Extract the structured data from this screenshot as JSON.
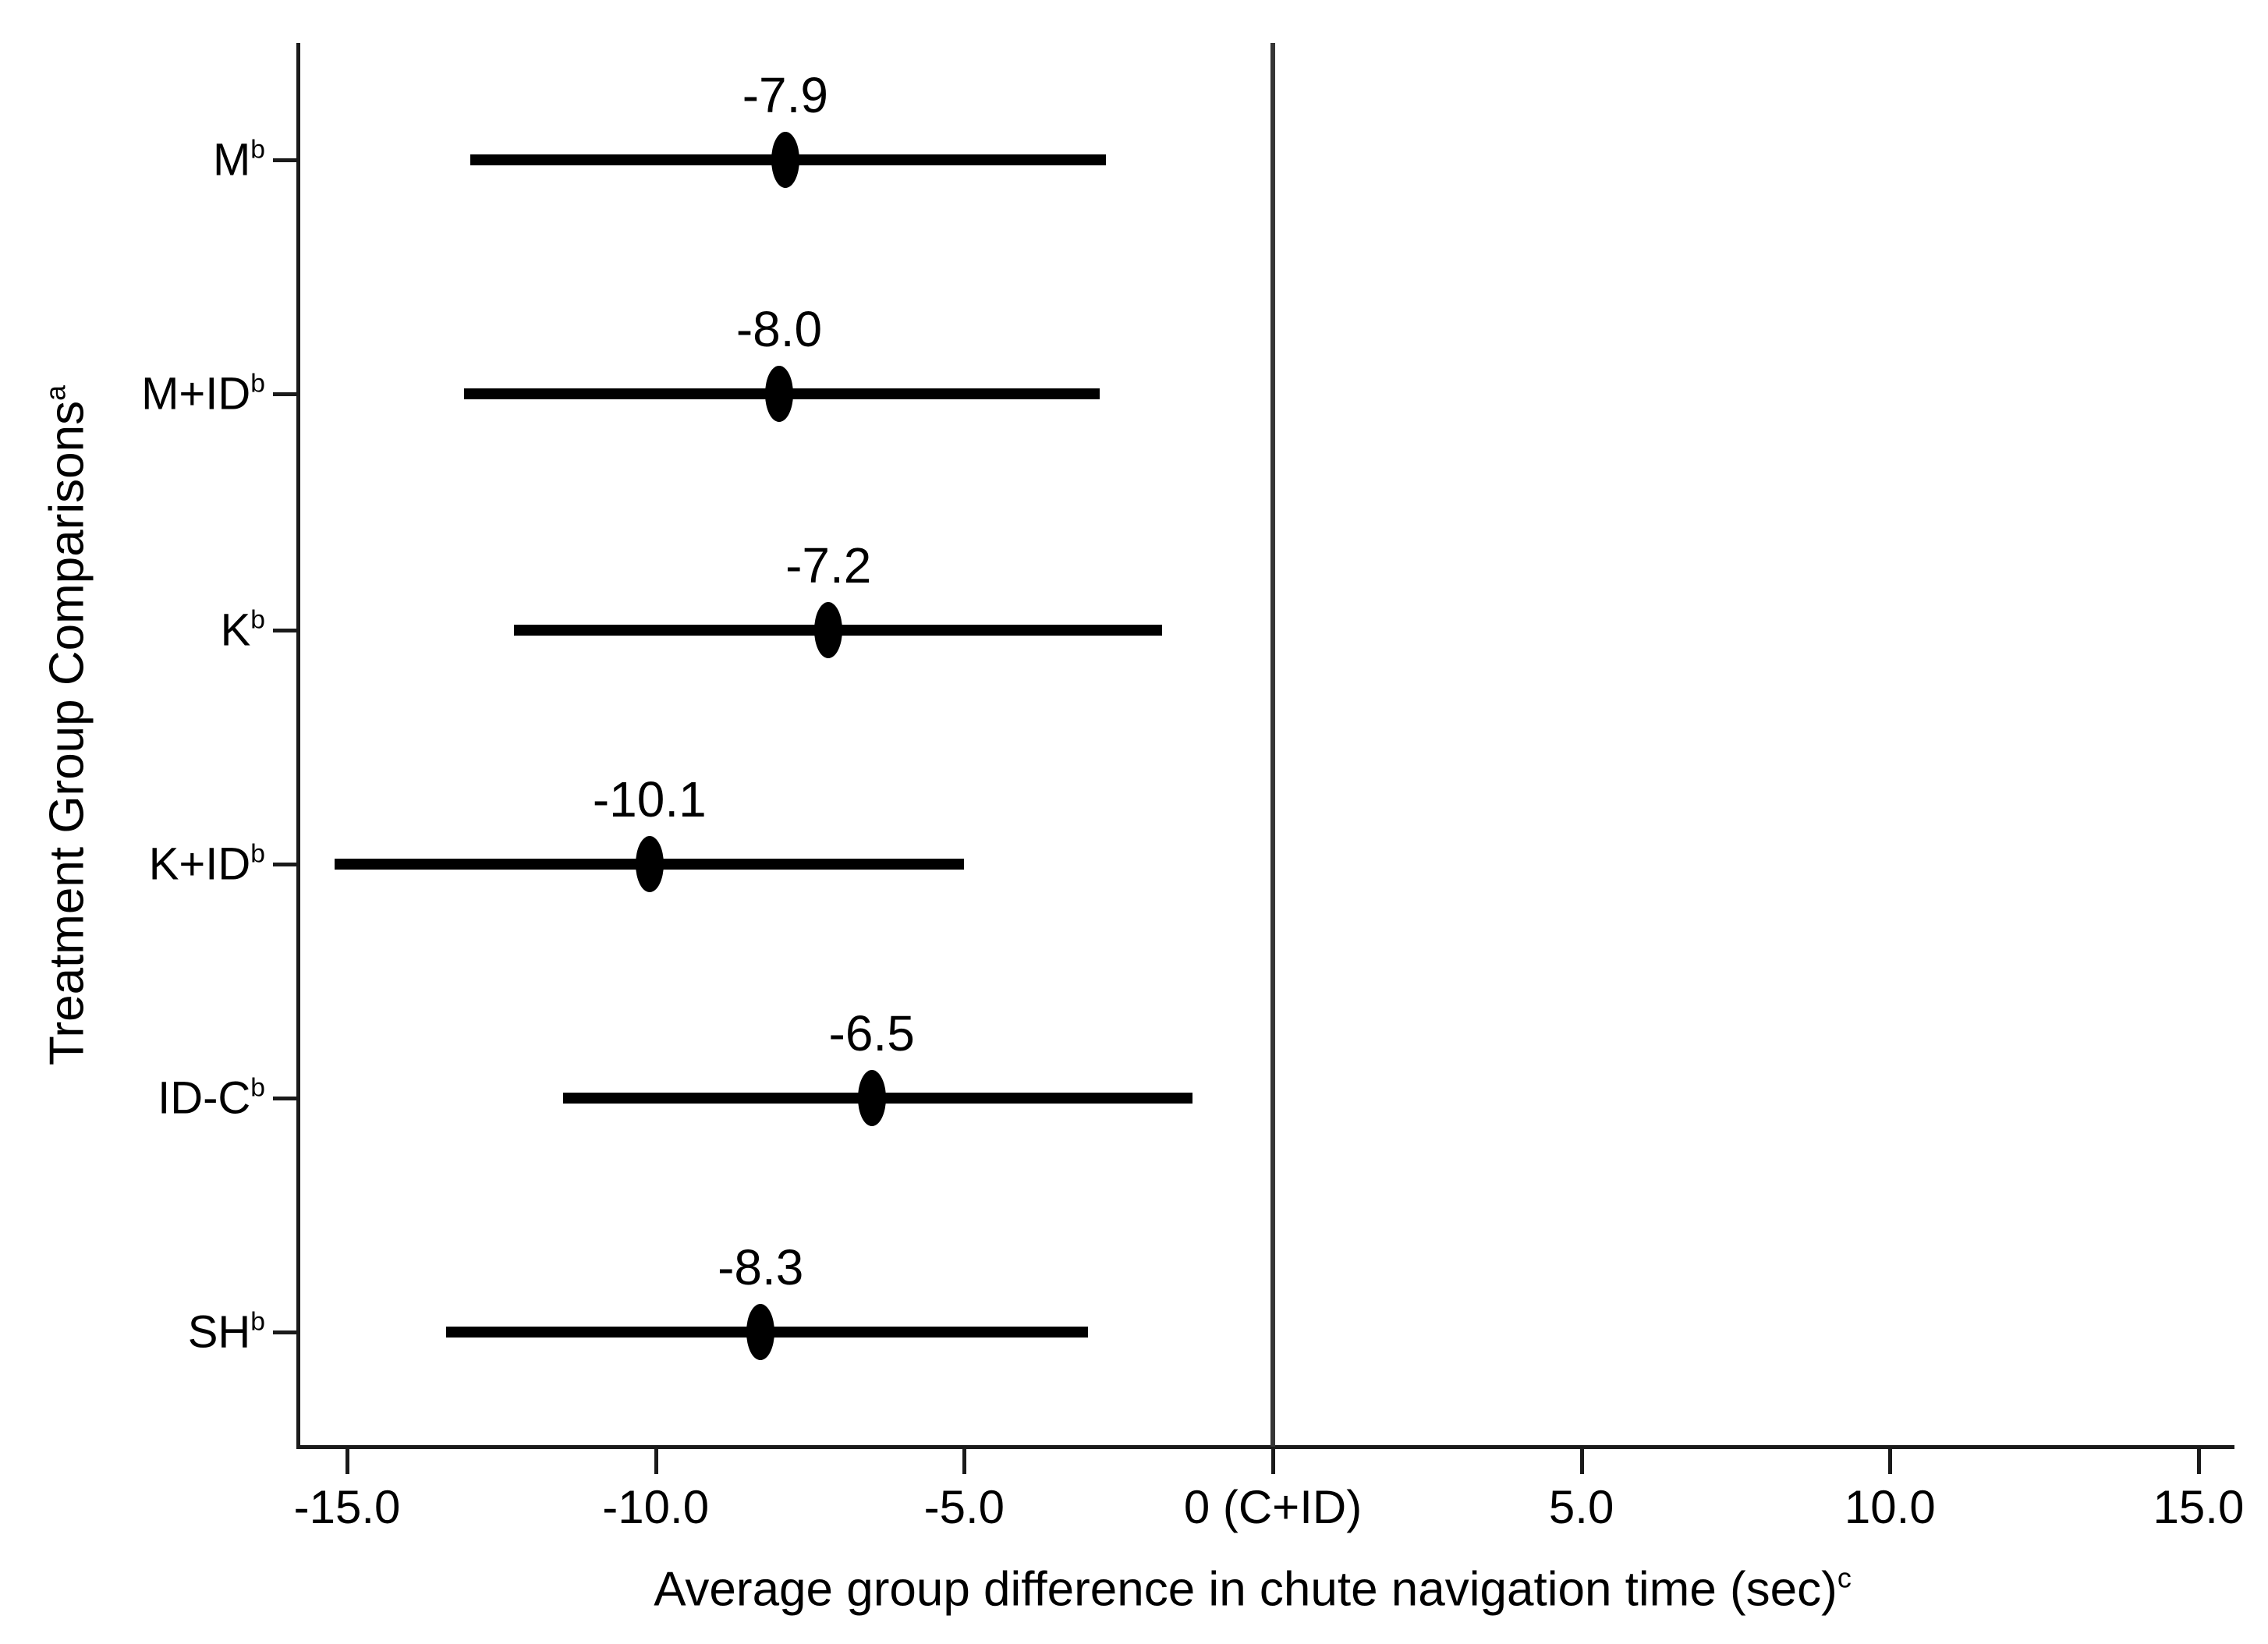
{
  "chart_data": {
    "type": "scatter",
    "subtype": "forest-plot-horizontal-error-bars",
    "title": "",
    "xlabel": "Average group difference in chute navigation time (sec)",
    "xlabel_sup": "c",
    "ylabel": "Treatment Group Comparisons",
    "ylabel_sup": "a",
    "xlim": [
      -15.8,
      15.6
    ],
    "grid": false,
    "legend": "none",
    "reference_line_x": 0,
    "x_ticks": [
      {
        "value": -15,
        "label": "-15.0"
      },
      {
        "value": -10,
        "label": "-10.0"
      },
      {
        "value": -5,
        "label": "-5.0"
      },
      {
        "value": 0,
        "label": "0 (C+ID)"
      },
      {
        "value": 5,
        "label": "5.0"
      },
      {
        "value": 10,
        "label": "10.0"
      },
      {
        "value": 15,
        "label": "15.0"
      }
    ],
    "series": [
      {
        "category": "M",
        "category_sup": "b",
        "value": -7.9,
        "value_label": "-7.9",
        "ci_low": -13.0,
        "ci_high": -2.7
      },
      {
        "category": "M+ID",
        "category_sup": "b",
        "value": -8.0,
        "value_label": "-8.0",
        "ci_low": -13.1,
        "ci_high": -2.8
      },
      {
        "category": "K",
        "category_sup": "b",
        "value": -7.2,
        "value_label": "-7.2",
        "ci_low": -12.3,
        "ci_high": -1.8
      },
      {
        "category": "K+ID",
        "category_sup": "b",
        "value": -10.1,
        "value_label": "-10.1",
        "ci_low": -15.2,
        "ci_high": -5.0
      },
      {
        "category": "ID-C",
        "category_sup": "b",
        "value": -6.5,
        "value_label": "-6.5",
        "ci_low": -11.5,
        "ci_high": -1.3
      },
      {
        "category": "SH",
        "category_sup": "b",
        "value": -8.3,
        "value_label": "-8.3",
        "ci_low": -13.4,
        "ci_high": -3.0
      }
    ],
    "colors": {
      "marker": "#000000",
      "error_bar": "#000000",
      "reference_line": "#363636",
      "axis": "#1a1a1a",
      "text": "#000000",
      "background": "#ffffff"
    }
  }
}
